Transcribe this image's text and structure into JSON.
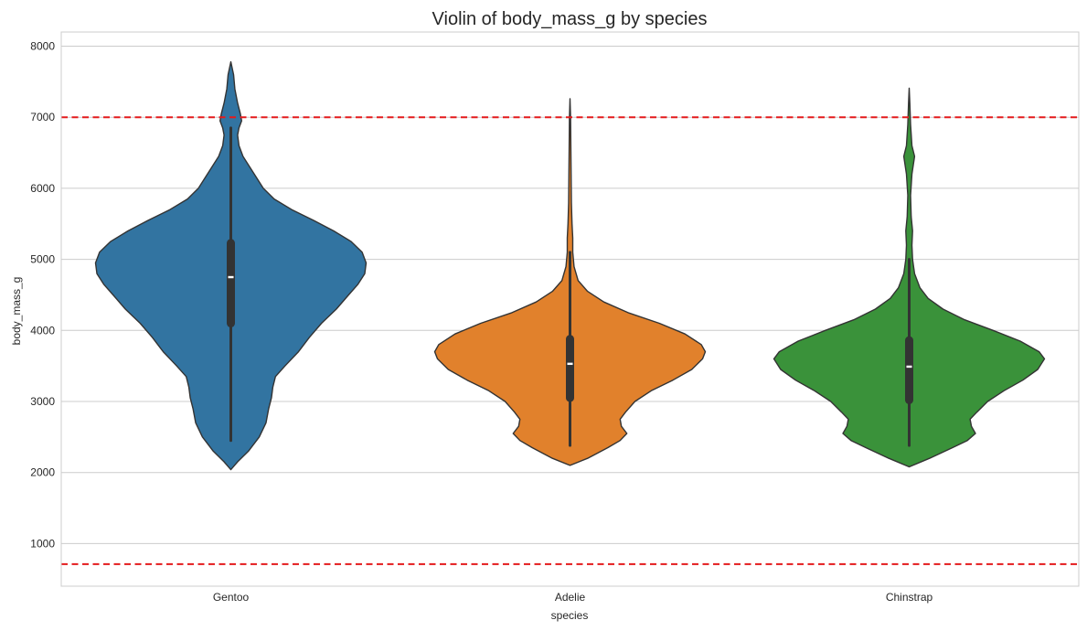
{
  "chart_data": {
    "type": "violin",
    "title": "Violin of body_mass_g by species",
    "xlabel": "species",
    "ylabel": "body_mass_g",
    "ylim": [
      400,
      8200
    ],
    "yticks": [
      1000,
      2000,
      3000,
      4000,
      5000,
      6000,
      7000,
      8000
    ],
    "grid": true,
    "categories": [
      "Gentoo",
      "Adelie",
      "Chinstrap"
    ],
    "reference_lines": [
      {
        "y": 7000,
        "color": "#e41a1c",
        "style": "dashed"
      },
      {
        "y": 710,
        "color": "#e41a1c",
        "style": "dashed"
      }
    ],
    "series": [
      {
        "category": "Gentoo",
        "color": "#3274a1",
        "min": 2040,
        "max": 7780,
        "whisker_low": 2450,
        "q1": 4100,
        "median": 4750,
        "q3": 5230,
        "whisker_high": 6850,
        "density": [
          [
            2040,
            0.0
          ],
          [
            2150,
            0.05
          ],
          [
            2300,
            0.13
          ],
          [
            2500,
            0.21
          ],
          [
            2700,
            0.26
          ],
          [
            2900,
            0.28
          ],
          [
            3050,
            0.3
          ],
          [
            3200,
            0.31
          ],
          [
            3350,
            0.33
          ],
          [
            3500,
            0.4
          ],
          [
            3700,
            0.5
          ],
          [
            3900,
            0.58
          ],
          [
            4100,
            0.67
          ],
          [
            4300,
            0.78
          ],
          [
            4500,
            0.87
          ],
          [
            4650,
            0.94
          ],
          [
            4800,
            0.99
          ],
          [
            4950,
            1.0
          ],
          [
            5100,
            0.97
          ],
          [
            5250,
            0.89
          ],
          [
            5400,
            0.76
          ],
          [
            5550,
            0.61
          ],
          [
            5700,
            0.45
          ],
          [
            5850,
            0.32
          ],
          [
            6000,
            0.24
          ],
          [
            6150,
            0.19
          ],
          [
            6300,
            0.14
          ],
          [
            6450,
            0.09
          ],
          [
            6600,
            0.06
          ],
          [
            6750,
            0.05
          ],
          [
            6850,
            0.06
          ],
          [
            6950,
            0.08
          ],
          [
            7050,
            0.07
          ],
          [
            7200,
            0.05
          ],
          [
            7400,
            0.03
          ],
          [
            7600,
            0.02
          ],
          [
            7780,
            0.0
          ]
        ]
      },
      {
        "category": "Adelie",
        "color": "#e1812c",
        "min": 2100,
        "max": 7260,
        "whisker_low": 2380,
        "q1": 3050,
        "median": 3530,
        "q3": 3880,
        "whisker_high": 5100,
        "density": [
          [
            2100,
            0.0
          ],
          [
            2200,
            0.13
          ],
          [
            2350,
            0.28
          ],
          [
            2450,
            0.37
          ],
          [
            2550,
            0.42
          ],
          [
            2650,
            0.38
          ],
          [
            2750,
            0.37
          ],
          [
            2850,
            0.41
          ],
          [
            3000,
            0.48
          ],
          [
            3150,
            0.6
          ],
          [
            3300,
            0.76
          ],
          [
            3450,
            0.9
          ],
          [
            3600,
            0.98
          ],
          [
            3700,
            1.0
          ],
          [
            3800,
            0.97
          ],
          [
            3950,
            0.85
          ],
          [
            4100,
            0.66
          ],
          [
            4250,
            0.43
          ],
          [
            4400,
            0.25
          ],
          [
            4550,
            0.13
          ],
          [
            4700,
            0.06
          ],
          [
            4900,
            0.03
          ],
          [
            5100,
            0.02
          ],
          [
            5300,
            0.02
          ],
          [
            5500,
            0.015
          ],
          [
            5800,
            0.01
          ],
          [
            6200,
            0.008
          ],
          [
            6600,
            0.006
          ],
          [
            7000,
            0.004
          ],
          [
            7260,
            0.0
          ]
        ]
      },
      {
        "category": "Chinstrap",
        "color": "#3a923a",
        "min": 2080,
        "max": 7410,
        "whisker_low": 2380,
        "q1": 3020,
        "median": 3490,
        "q3": 3860,
        "whisker_high": 5000,
        "density": [
          [
            2080,
            0.0
          ],
          [
            2200,
            0.15
          ],
          [
            2350,
            0.32
          ],
          [
            2450,
            0.43
          ],
          [
            2550,
            0.49
          ],
          [
            2650,
            0.46
          ],
          [
            2750,
            0.45
          ],
          [
            2850,
            0.5
          ],
          [
            3000,
            0.58
          ],
          [
            3150,
            0.7
          ],
          [
            3300,
            0.84
          ],
          [
            3450,
            0.95
          ],
          [
            3600,
            1.0
          ],
          [
            3700,
            0.96
          ],
          [
            3850,
            0.82
          ],
          [
            4000,
            0.62
          ],
          [
            4150,
            0.41
          ],
          [
            4300,
            0.25
          ],
          [
            4450,
            0.14
          ],
          [
            4600,
            0.08
          ],
          [
            4800,
            0.04
          ],
          [
            5000,
            0.025
          ],
          [
            5200,
            0.02
          ],
          [
            5400,
            0.025
          ],
          [
            5600,
            0.015
          ],
          [
            5900,
            0.01
          ],
          [
            6200,
            0.02
          ],
          [
            6450,
            0.04
          ],
          [
            6600,
            0.02
          ],
          [
            6900,
            0.01
          ],
          [
            7200,
            0.005
          ],
          [
            7410,
            0.0
          ]
        ]
      }
    ]
  }
}
